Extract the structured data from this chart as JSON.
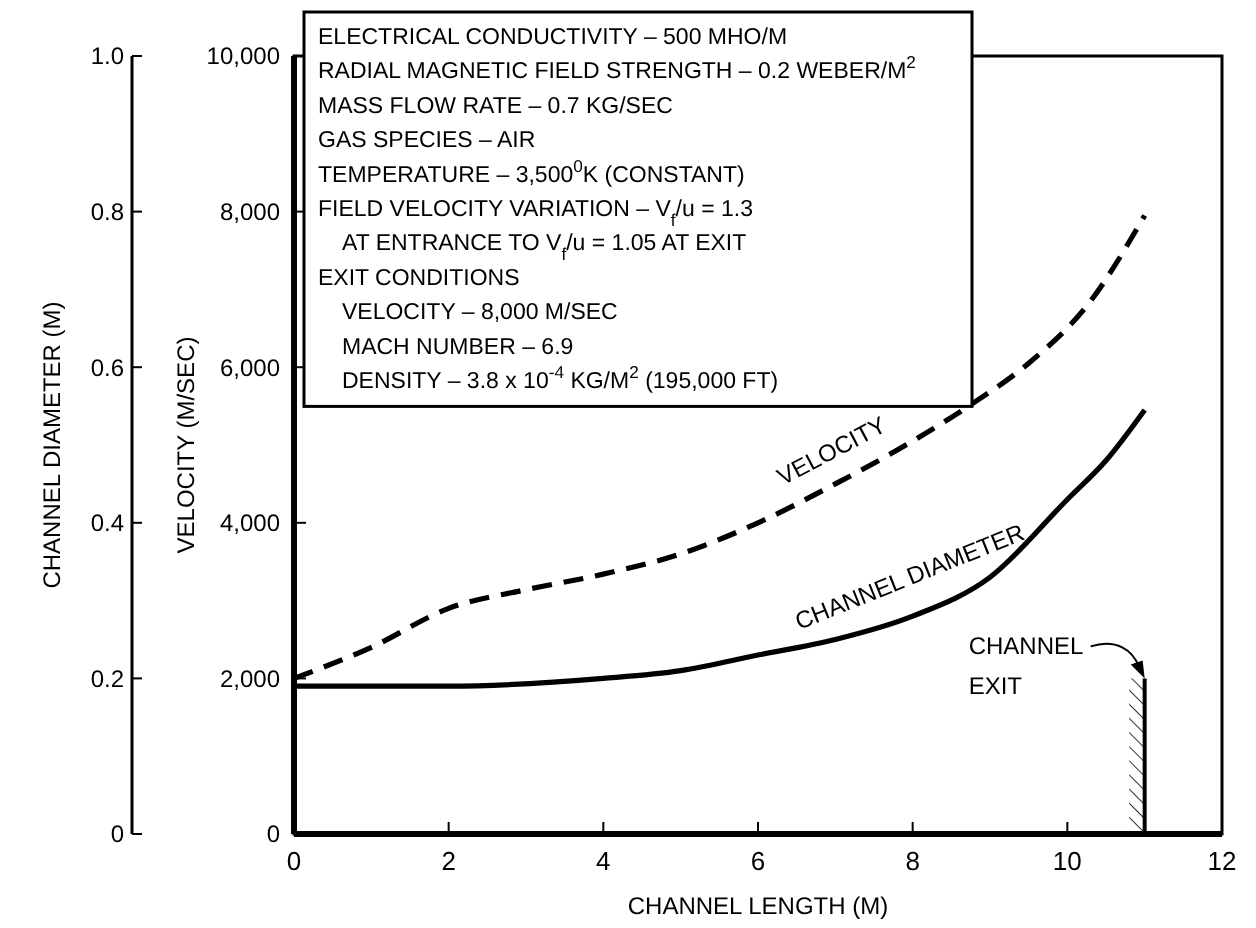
{
  "chart_data": {
    "type": "line",
    "xlabel": "CHANNEL LENGTH (M)",
    "ylabel": "VELOCITY (M/SEC)",
    "y2label": "CHANNEL DIAMETER (M)",
    "xlim": [
      0,
      12
    ],
    "xticks": [
      0,
      2,
      4,
      6,
      8,
      10,
      12
    ],
    "ylim": [
      0,
      10000
    ],
    "yticks": [
      0,
      {
        "value": 2000,
        "label": "2,000"
      },
      {
        "value": 4000,
        "label": "4,000"
      },
      {
        "value": 6000,
        "label": "6,000"
      },
      {
        "value": 8000,
        "label": "8,000"
      },
      {
        "value": 10000,
        "label": "10,000"
      }
    ],
    "y2lim": [
      0,
      1
    ],
    "y2ticks": [
      0,
      0.2,
      0.4,
      0.6,
      0.8,
      {
        "value": 1,
        "label": "1.0"
      }
    ],
    "grid": false,
    "legend": false,
    "marker": "none",
    "series": [
      {
        "name": "VELOCITY",
        "color": "#000000",
        "line_style": "dashed",
        "x": [
          0,
          1,
          2,
          3,
          4,
          5,
          6,
          7,
          8,
          8.8,
          9.5,
          10.3,
          11
        ],
        "values": [
          2000,
          2400,
          2900,
          3140,
          3340,
          3600,
          4000,
          4500,
          5050,
          5550,
          6050,
          6850,
          7950
        ]
      },
      {
        "name": "CHANNEL DIAMETER",
        "color": "#000000",
        "line_style": "solid",
        "axis": "y2",
        "x": [
          0,
          2,
          4,
          5,
          6,
          7,
          8,
          9,
          10,
          10.5,
          11
        ],
        "values": [
          0.19,
          0.19,
          0.2,
          0.21,
          0.23,
          0.25,
          0.28,
          0.33,
          0.43,
          0.48,
          0.545
        ]
      }
    ],
    "annotations": [
      "ELECTRICAL CONDUCTIVITY – 500 MHO/M",
      "RADIAL MAGNETIC FIELD STRENGTH – 0.2 WEBER/M$^{2}$",
      "MASS FLOW RATE – 0.7 KG/SEC",
      "GAS SPECIES – AIR",
      "TEMPERATURE – 3,500$^{0}$K (CONSTANT)",
      "FIELD VELOCITY VARIATION – V$_{f}$/u = 1.3",
      "   AT ENTRANCE TO V$_{f}$/u = 1.05 AT EXIT",
      "EXIT CONDITIONS",
      "   VELOCITY – 8,000 M/SEC",
      "   MACH NUMBER – 6.9",
      "   DENSITY – 3.8 x 10$^{-4}$ KG/M$^{2}$ (195,000 FT)",
      "CHANNEL EXIT"
    ],
    "bands": [
      {
        "axis": "x",
        "from": 10.8,
        "to": 11
      }
    ]
  }
}
